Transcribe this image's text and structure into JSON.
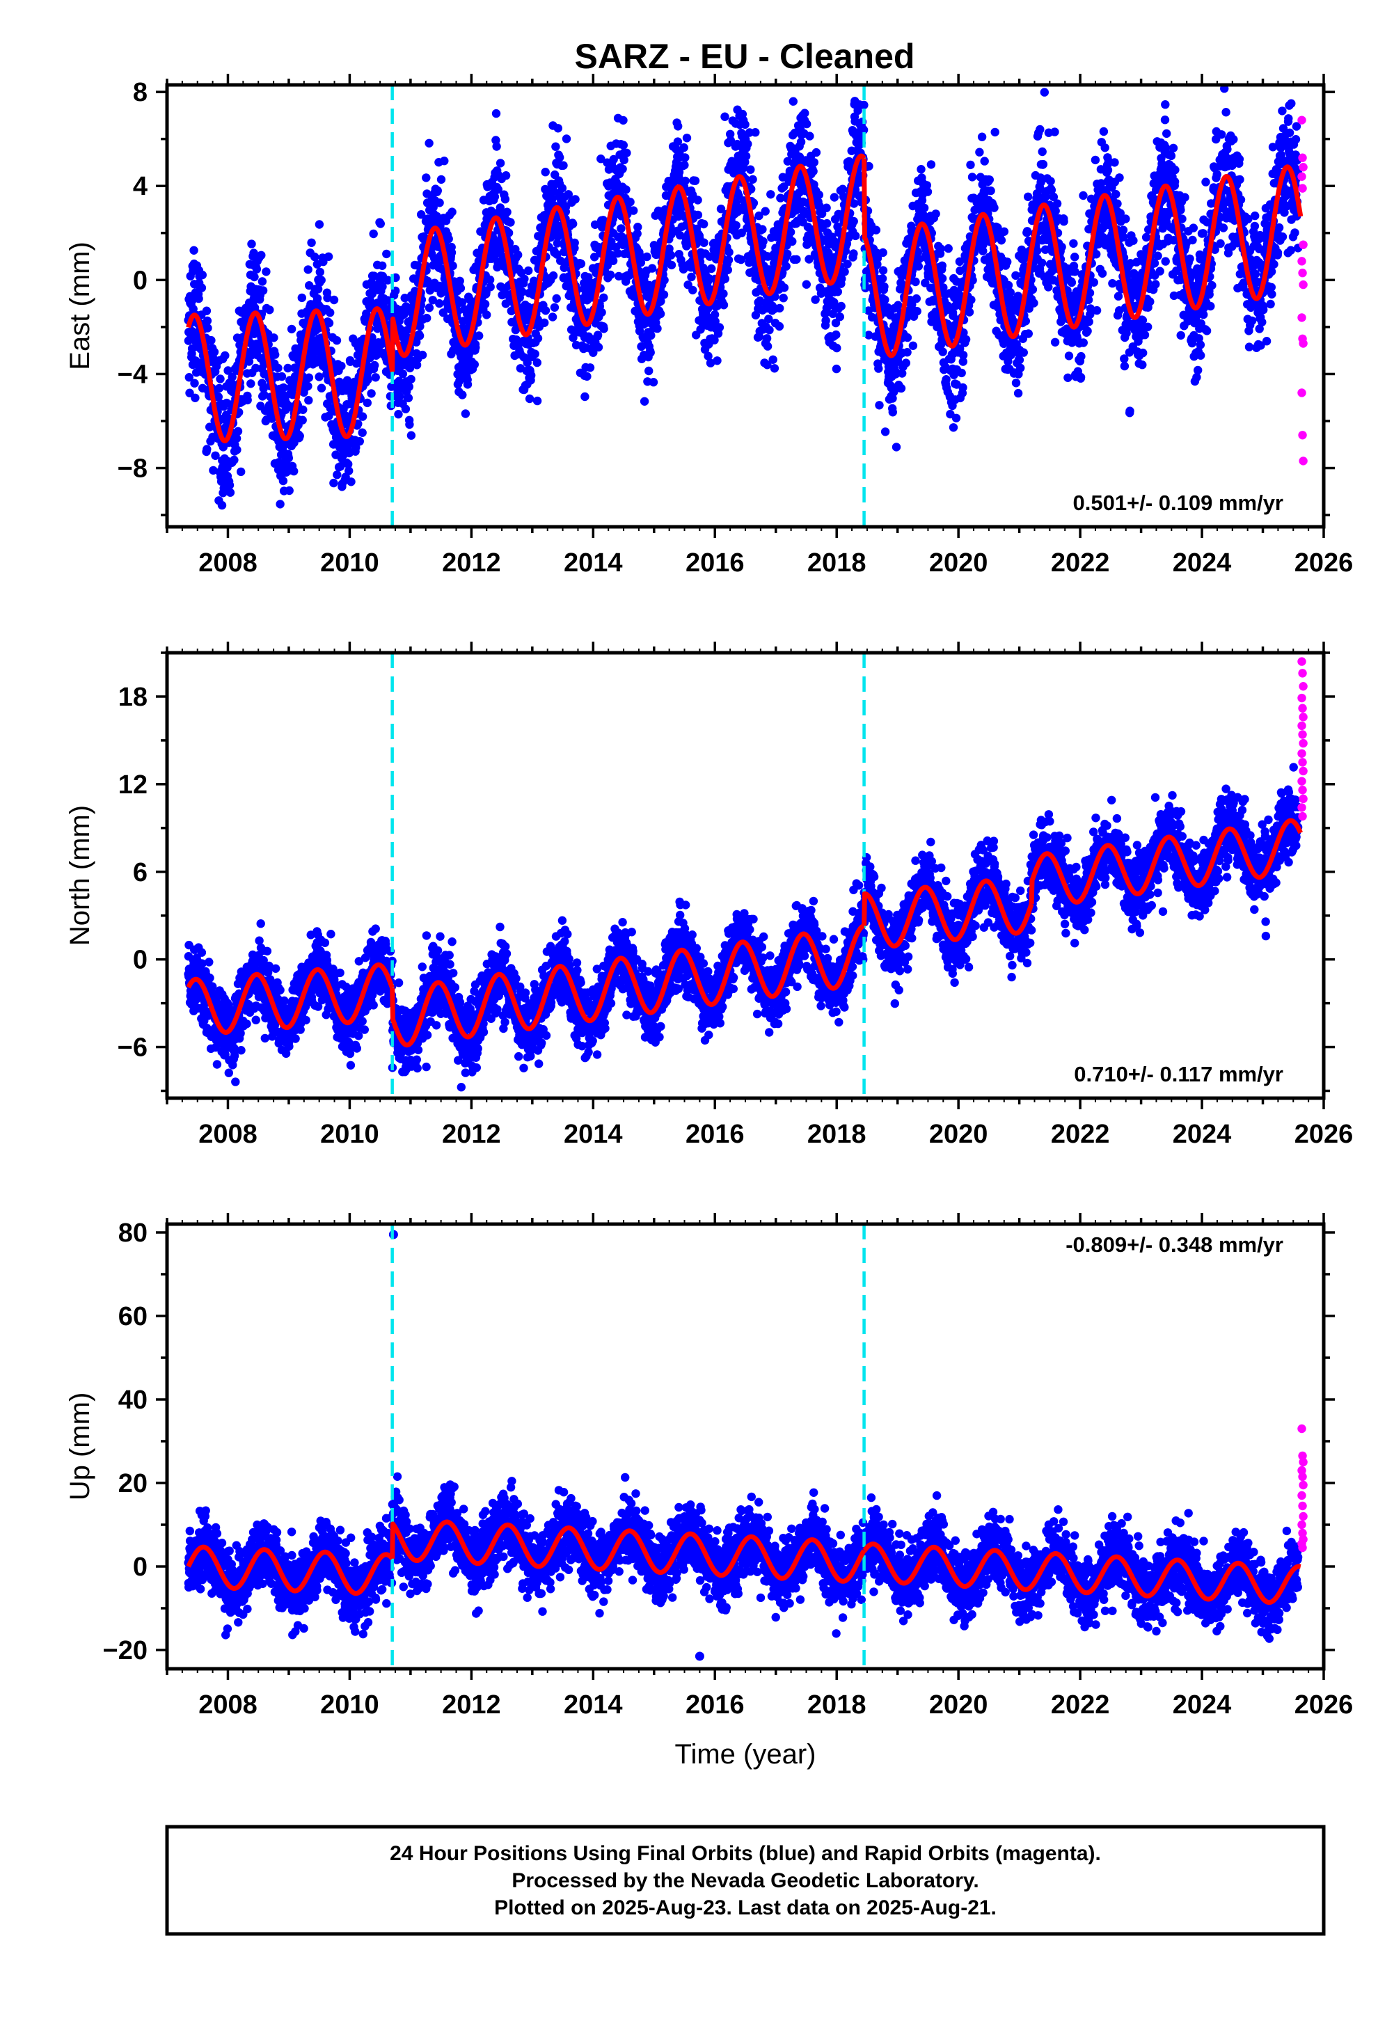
{
  "title": "SARZ  - EU - Cleaned",
  "colors": {
    "final_orbits": "#0000ff",
    "rapid_orbits": "#ff00ff",
    "model_fit": "#ff0000",
    "offsets": "#00e5ee",
    "frame": "#000000"
  },
  "chart_data": [
    {
      "type": "scatter",
      "component": "East",
      "ylabel": "East (mm)",
      "xlabel": "",
      "xlim": [
        2007.0,
        2026.0
      ],
      "ylim": [
        -10.5,
        8.3
      ],
      "xticks": [
        "2008",
        "2010",
        "2012",
        "2014",
        "2016",
        "2018",
        "2020",
        "2022",
        "2024",
        "2026"
      ],
      "yticks": [
        "8",
        "4",
        "0",
        "−4",
        "−8"
      ],
      "ytick_values": [
        8,
        4,
        0,
        -4,
        -8
      ],
      "velocity_text": "0.501+/- 0.109 mm/yr",
      "velocity_position": "bottom-right",
      "offset_epochs": [
        2010.7,
        2018.45
      ],
      "model_segments": [
        {
          "t0": 2007.35,
          "t1": 2010.7,
          "trend_start": -4.2,
          "trend_end": -3.9,
          "amplitude": 2.7,
          "phase_peak": 0.45
        },
        {
          "t0": 2010.7,
          "t1": 2018.45,
          "trend_start": -0.7,
          "trend_end": 2.7,
          "amplitude": 2.6,
          "phase_peak": 0.4
        },
        {
          "t0": 2018.45,
          "t1": 2025.62,
          "trend_start": -0.7,
          "trend_end": 2.2,
          "amplitude": 2.7,
          "phase_peak": 0.4
        }
      ],
      "scatter_noise_mm": 1.4,
      "rapid_points": [
        6.8,
        5.2,
        4.8,
        4.4,
        3.9,
        1.5,
        0.8,
        0.3,
        -0.2,
        -1.6,
        -2.5,
        -2.7,
        -4.8,
        -6.6,
        -7.7
      ]
    },
    {
      "type": "scatter",
      "component": "North",
      "ylabel": "North (mm)",
      "xlabel": "",
      "xlim": [
        2007.0,
        2026.0
      ],
      "ylim": [
        -9.5,
        21.0
      ],
      "xticks": [
        "2008",
        "2010",
        "2012",
        "2014",
        "2016",
        "2018",
        "2020",
        "2022",
        "2024",
        "2026"
      ],
      "yticks": [
        "18",
        "12",
        "6",
        "0",
        "−6"
      ],
      "ytick_values": [
        18,
        12,
        6,
        0,
        -6
      ],
      "velocity_text": "0.710+/- 0.117 mm/yr",
      "velocity_position": "bottom-right",
      "offset_epochs": [
        2010.7,
        2018.45
      ],
      "model_segments": [
        {
          "t0": 2007.35,
          "t1": 2010.7,
          "trend_start": -3.3,
          "trend_end": -2.2,
          "amplitude": 1.9,
          "phase_peak": 0.47
        },
        {
          "t0": 2010.7,
          "t1": 2018.45,
          "trend_start": -4.0,
          "trend_end": 0.3,
          "amplitude": 2.0,
          "phase_peak": 0.45
        },
        {
          "t0": 2018.45,
          "t1": 2021.2,
          "trend_start": 2.6,
          "trend_end": 3.8,
          "amplitude": 1.9,
          "phase_peak": 0.45
        },
        {
          "t0": 2021.2,
          "t1": 2025.62,
          "trend_start": 5.3,
          "trend_end": 7.8,
          "amplitude": 1.8,
          "phase_peak": 0.45
        }
      ],
      "scatter_noise_mm": 1.2,
      "rapid_points": [
        20.4,
        19.6,
        18.7,
        17.9,
        17.2,
        16.6,
        16.0,
        15.4,
        14.8,
        14.1,
        13.5,
        12.9,
        12.2,
        11.6,
        11.0,
        10.4,
        9.8
      ]
    },
    {
      "type": "scatter",
      "component": "Up",
      "ylabel": "Up (mm)",
      "xlabel": "Time (year)",
      "xlim": [
        2007.0,
        2026.0
      ],
      "ylim": [
        -24.5,
        82.0
      ],
      "xticks": [
        "2008",
        "2010",
        "2012",
        "2014",
        "2016",
        "2018",
        "2020",
        "2022",
        "2024",
        "2026"
      ],
      "yticks": [
        "80",
        "60",
        "40",
        "20",
        "0",
        "−20"
      ],
      "ytick_values": [
        80,
        60,
        40,
        20,
        0,
        -20
      ],
      "velocity_text": "-0.809+/- 0.348 mm/yr",
      "velocity_position": "top-right",
      "offset_epochs": [
        2010.7,
        2018.45
      ],
      "model_segments": [
        {
          "t0": 2007.35,
          "t1": 2010.7,
          "trend_start": 0.0,
          "trend_end": -2.0,
          "amplitude": 4.8,
          "phase_peak": 0.6
        },
        {
          "t0": 2010.7,
          "t1": 2018.45,
          "trend_start": 6.5,
          "trend_end": 1.0,
          "amplitude": 4.8,
          "phase_peak": 0.6
        },
        {
          "t0": 2018.45,
          "t1": 2025.62,
          "trend_start": 1.0,
          "trend_end": -4.5,
          "amplitude": 4.5,
          "phase_peak": 0.6
        }
      ],
      "scatter_noise_mm": 4.0,
      "outliers": [
        {
          "x": 2010.72,
          "y": 79.5,
          "series": "final"
        },
        {
          "x": 2015.75,
          "y": -21.5,
          "series": "final"
        }
      ],
      "rapid_points": [
        33.0,
        26.5,
        25.0,
        23.0,
        21.5,
        19.5,
        17.0,
        14.5,
        12.0,
        10.0,
        8.0,
        6.5,
        5.5,
        4.5
      ]
    }
  ],
  "caption": {
    "line1": "24 Hour Positions Using Final Orbits (blue) and Rapid Orbits (magenta).",
    "line2": "Processed by the Nevada Geodetic Laboratory.",
    "line3": "Plotted on 2025-Aug-23. Last data on 2025-Aug-21."
  }
}
